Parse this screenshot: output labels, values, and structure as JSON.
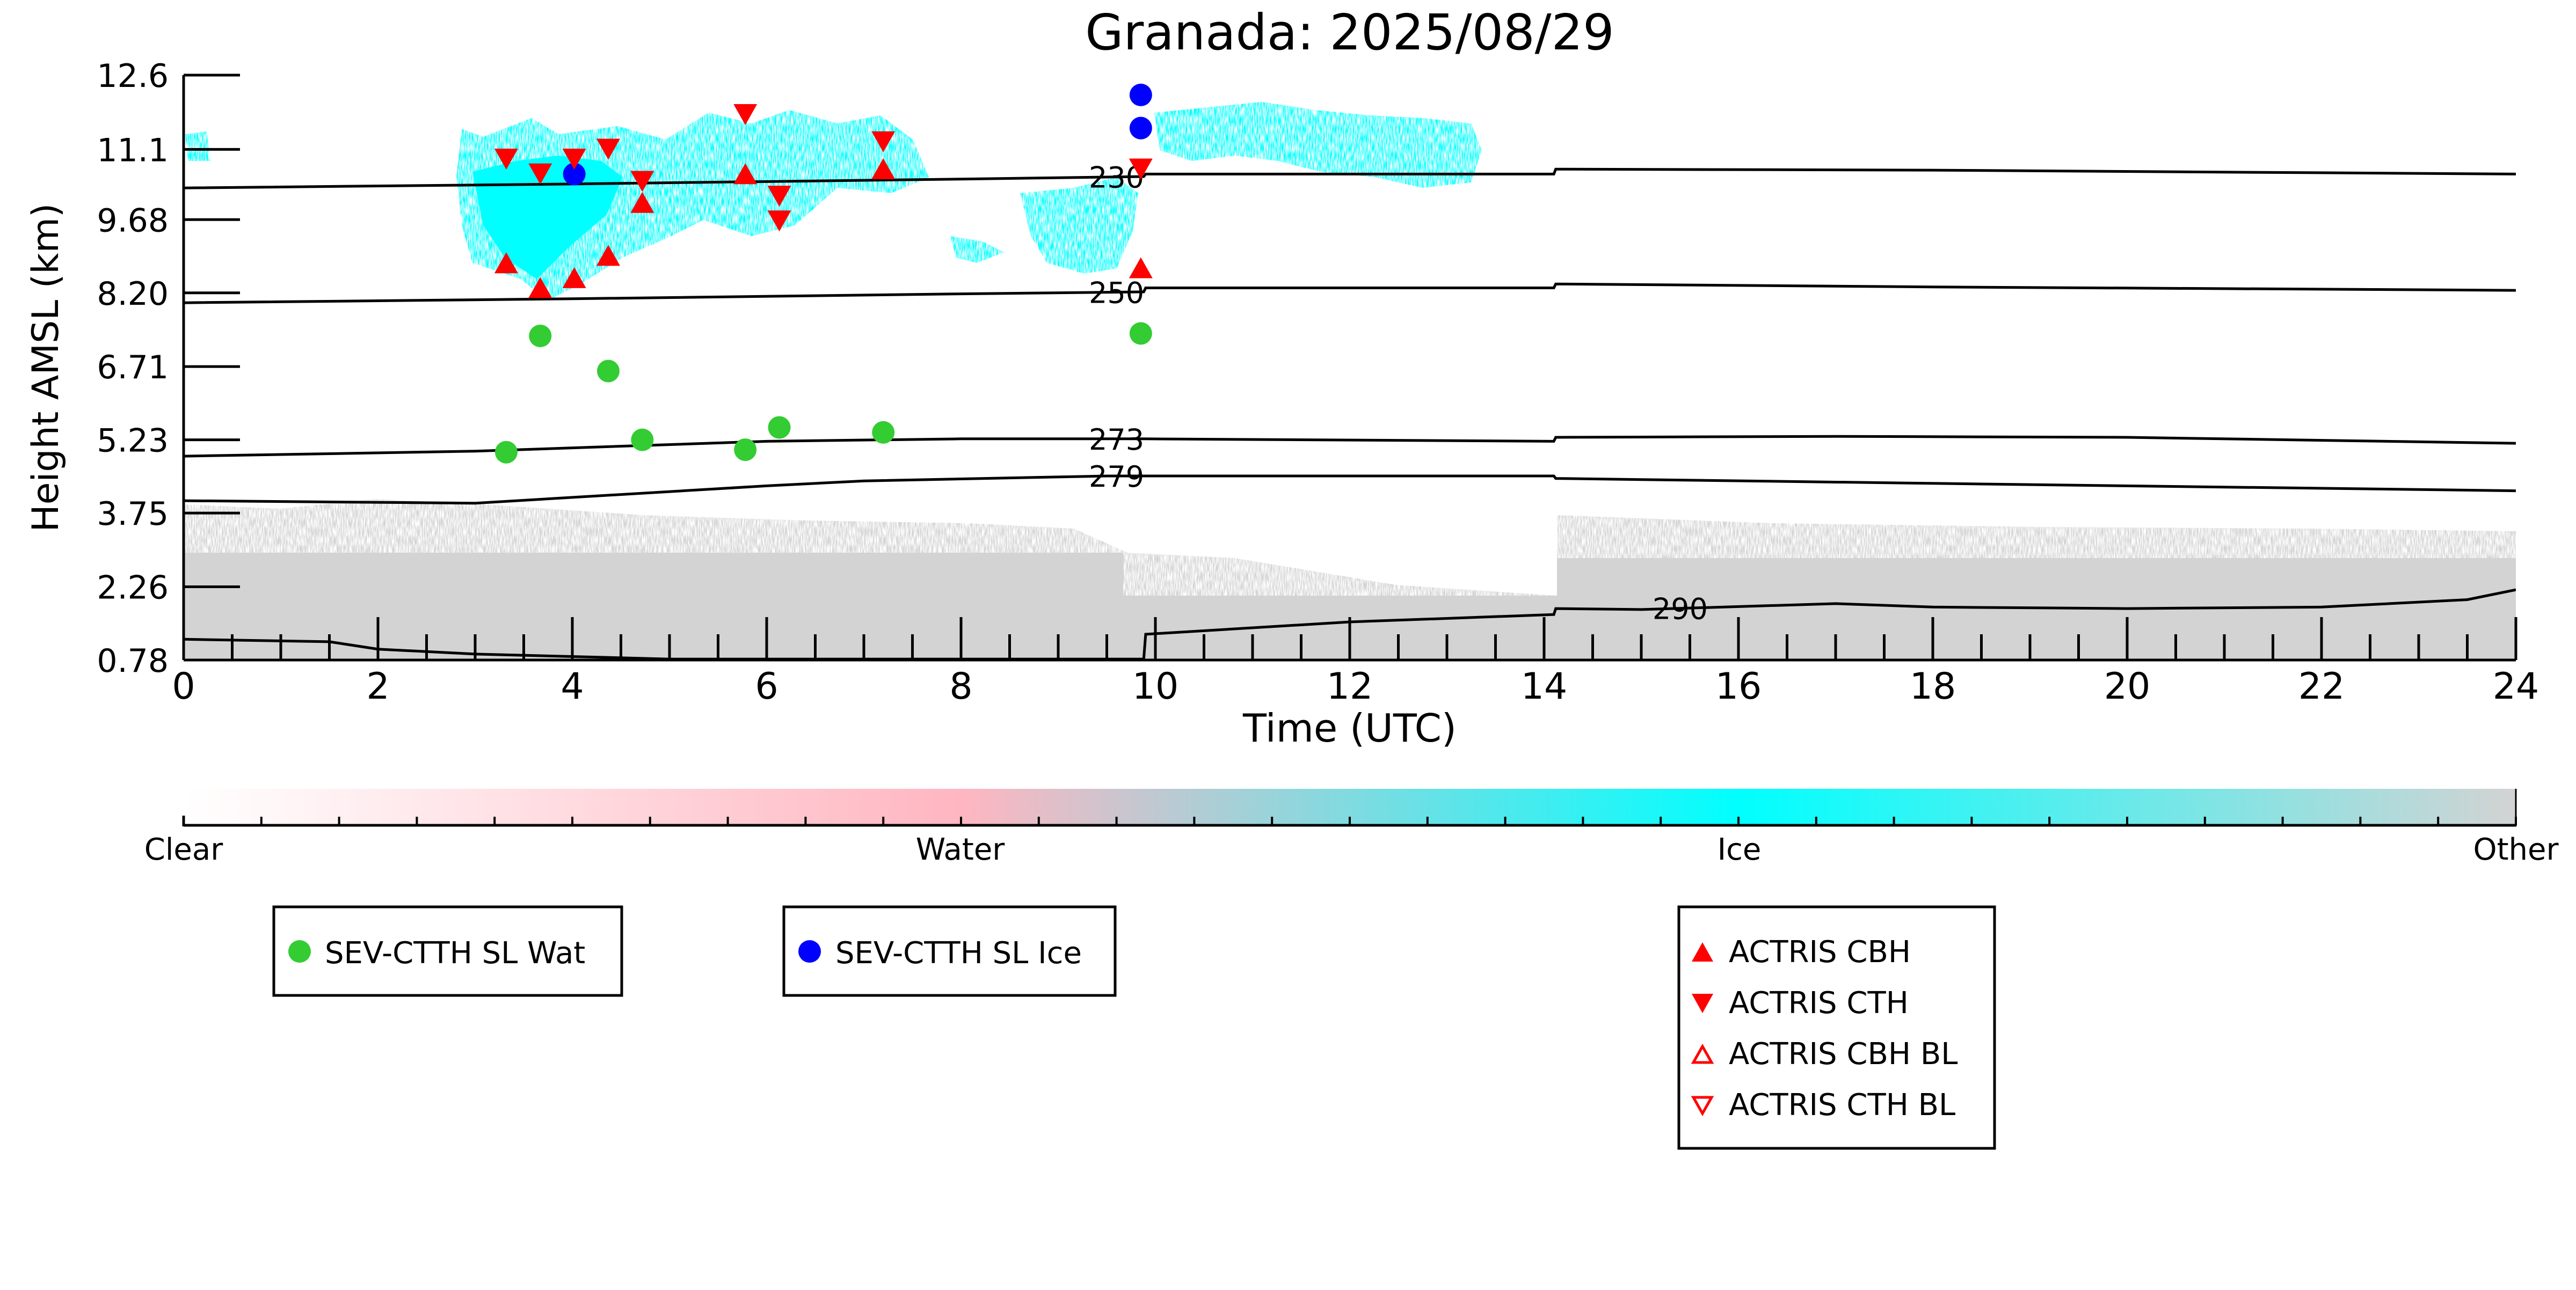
{
  "chart_data": {
    "type": "scatter",
    "title": "Granada: 2025/08/29",
    "xlabel": "Time (UTC)",
    "ylabel": "Height AMSL (km)",
    "xlim": [
      0,
      24
    ],
    "ylim": [
      0.78,
      12.6
    ],
    "xticks": [
      0,
      2,
      4,
      6,
      8,
      10,
      12,
      14,
      16,
      18,
      20,
      22,
      24
    ],
    "yticks": [
      0.78,
      2.26,
      3.75,
      5.23,
      6.71,
      8.2,
      9.68,
      11.1,
      12.6
    ],
    "ytick_labels": [
      "0.78",
      "2.26",
      "3.75",
      "5.23",
      "6.71",
      "8.20",
      "9.68",
      "11.1",
      "12.6"
    ],
    "grid": false,
    "colorbar": {
      "labels": [
        "Clear",
        "Water",
        "Ice",
        "Other"
      ],
      "positions": [
        0,
        0.333,
        0.667,
        1
      ],
      "colors": [
        "#ffffff",
        "#ffb6c1",
        "#00ffff",
        "#d3d3d3"
      ]
    },
    "isotherms": [
      {
        "label": "230",
        "label_x": 9.6,
        "points": [
          [
            0,
            10.32
          ],
          [
            4,
            10.4
          ],
          [
            8,
            10.5
          ],
          [
            9.88,
            10.55
          ],
          [
            9.9,
            10.6
          ],
          [
            14.1,
            10.6
          ],
          [
            14.12,
            10.7
          ],
          [
            18,
            10.68
          ],
          [
            24,
            10.6
          ]
        ]
      },
      {
        "label": "250",
        "label_x": 9.6,
        "points": [
          [
            0,
            8.0
          ],
          [
            4,
            8.08
          ],
          [
            8,
            8.18
          ],
          [
            9.88,
            8.22
          ],
          [
            9.9,
            8.3
          ],
          [
            14.1,
            8.3
          ],
          [
            14.12,
            8.38
          ],
          [
            18,
            8.32
          ],
          [
            24,
            8.25
          ]
        ]
      },
      {
        "label": "273",
        "label_x": 9.6,
        "points": [
          [
            0,
            4.9
          ],
          [
            3,
            5.0
          ],
          [
            6,
            5.2
          ],
          [
            8,
            5.25
          ],
          [
            9.88,
            5.25
          ],
          [
            14.1,
            5.2
          ],
          [
            14.12,
            5.28
          ],
          [
            17,
            5.3
          ],
          [
            20,
            5.28
          ],
          [
            24,
            5.16
          ]
        ]
      },
      {
        "label": "279",
        "label_x": 9.6,
        "points": [
          [
            0,
            4.0
          ],
          [
            3,
            3.95
          ],
          [
            6,
            4.3
          ],
          [
            7,
            4.4
          ],
          [
            9.5,
            4.5
          ],
          [
            9.88,
            4.5
          ],
          [
            14.1,
            4.5
          ],
          [
            14.12,
            4.45
          ],
          [
            18,
            4.35
          ],
          [
            24,
            4.2
          ]
        ]
      },
      {
        "label": "290",
        "label_x": 15.4,
        "points": [
          [
            0,
            1.2
          ],
          [
            1.5,
            1.15
          ],
          [
            2,
            1.0
          ],
          [
            3,
            0.9
          ],
          [
            5,
            0.8
          ],
          [
            9.88,
            0.8
          ],
          [
            9.9,
            1.3
          ],
          [
            12,
            1.55
          ],
          [
            14.1,
            1.7
          ],
          [
            14.12,
            1.82
          ],
          [
            15,
            1.8
          ],
          [
            17,
            1.92
          ],
          [
            18,
            1.85
          ],
          [
            20,
            1.82
          ],
          [
            22,
            1.85
          ],
          [
            23.5,
            2.0
          ],
          [
            24,
            2.2
          ]
        ]
      }
    ],
    "series": [
      {
        "name": "SEV-CTTH SL Wat",
        "color": "#33cc33",
        "marker": "circle",
        "x": [
          3.32,
          3.67,
          4.37,
          4.72,
          5.78,
          6.13,
          7.2,
          9.85
        ],
        "y": [
          4.98,
          7.33,
          6.62,
          5.23,
          5.03,
          5.48,
          5.38,
          7.38
        ]
      },
      {
        "name": "SEV-CTTH SL Ice",
        "color": "#0000ff",
        "marker": "circle",
        "x": [
          4.02,
          9.85,
          9.85
        ],
        "y": [
          10.6,
          11.53,
          12.2
        ]
      },
      {
        "name": "ACTRIS CBH",
        "color": "#ff0000",
        "marker": "triangle-up",
        "x": [
          3.32,
          3.67,
          4.02,
          4.37,
          4.72,
          5.78,
          7.2,
          9.85
        ],
        "y": [
          8.78,
          8.28,
          8.48,
          8.93,
          10.0,
          10.58,
          10.68,
          8.68
        ]
      },
      {
        "name": "ACTRIS CTH",
        "color": "#ff0000",
        "marker": "triangle-down",
        "x": [
          3.32,
          3.67,
          4.02,
          4.37,
          4.72,
          5.78,
          6.13,
          6.13,
          7.2,
          9.85
        ],
        "y": [
          10.93,
          10.63,
          10.93,
          11.13,
          10.48,
          11.83,
          10.18,
          9.68,
          11.28,
          10.73
        ]
      },
      {
        "name": "ACTRIS CBH BL",
        "color": "#ff0000",
        "marker": "triangle-up-open",
        "x": [],
        "y": []
      },
      {
        "name": "ACTRIS CTH BL",
        "color": "#ff0000",
        "marker": "triangle-down-open",
        "x": [],
        "y": []
      }
    ]
  }
}
